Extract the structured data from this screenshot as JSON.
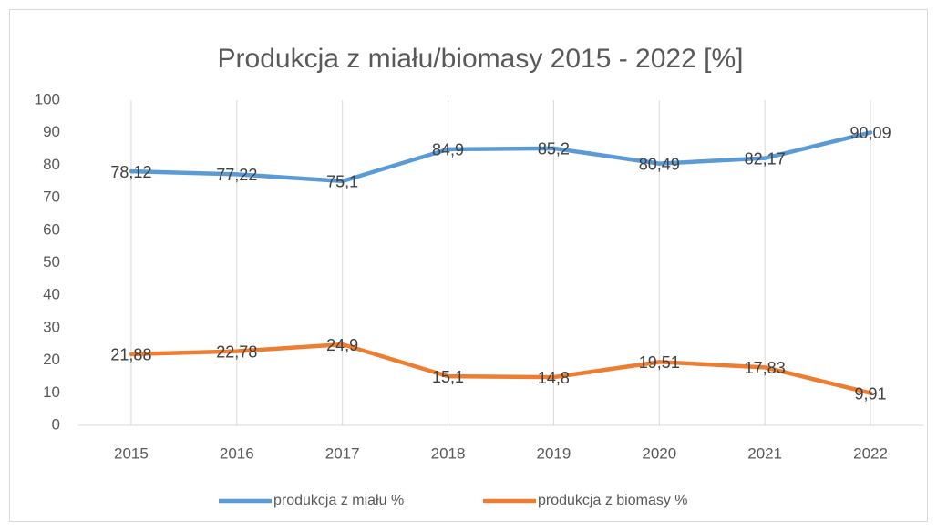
{
  "chart_data": {
    "type": "line",
    "title": "Produkcja z miału/biomasy 2015 - 2022 [%]",
    "categories": [
      "2015",
      "2016",
      "2017",
      "2018",
      "2019",
      "2020",
      "2021",
      "2022"
    ],
    "series": [
      {
        "name": "produkcja z miału %",
        "color": "#5b9bd5",
        "values": [
          78.12,
          77.22,
          75.1,
          84.9,
          85.2,
          80.49,
          82.17,
          90.09
        ],
        "value_labels": [
          "78,12",
          "77,22",
          "75,1",
          "84,9",
          "85,2",
          "80,49",
          "82,17",
          "90,09"
        ]
      },
      {
        "name": "produkcja z biomasy %",
        "color": "#ed7d31",
        "values": [
          21.88,
          22.78,
          24.9,
          15.1,
          14.8,
          19.51,
          17.83,
          9.91
        ],
        "value_labels": [
          "21,88",
          "22,78",
          "24,9",
          "15,1",
          "14,8",
          "19,51",
          "17,83",
          "9,91"
        ]
      }
    ],
    "ylim": [
      0,
      100
    ],
    "yticks": [
      0,
      10,
      20,
      30,
      40,
      50,
      60,
      70,
      80,
      90,
      100
    ],
    "grid": "x",
    "legend": "bottom"
  }
}
